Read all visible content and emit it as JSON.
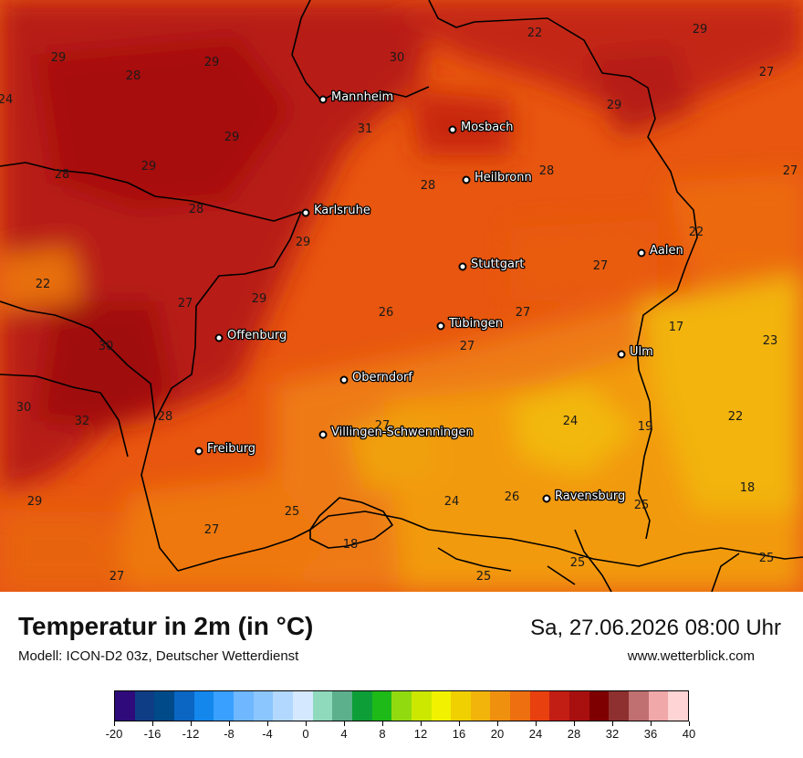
{
  "map": {
    "temperature_labels": [
      {
        "text": "29"
      },
      {
        "text": "28"
      },
      {
        "text": "29"
      },
      {
        "text": "30"
      },
      {
        "text": "22"
      },
      {
        "text": "29"
      },
      {
        "text": "24"
      },
      {
        "text": "27"
      },
      {
        "text": "29"
      },
      {
        "text": "31"
      },
      {
        "text": "29"
      },
      {
        "text": "28"
      },
      {
        "text": "29"
      },
      {
        "text": "28"
      },
      {
        "text": "27"
      },
      {
        "text": "28"
      },
      {
        "text": "28"
      },
      {
        "text": "22"
      },
      {
        "text": "29"
      },
      {
        "text": "22"
      },
      {
        "text": "27"
      },
      {
        "text": "27"
      },
      {
        "text": "29"
      },
      {
        "text": "26"
      },
      {
        "text": "27"
      },
      {
        "text": "17"
      },
      {
        "text": "30"
      },
      {
        "text": "23"
      },
      {
        "text": "27"
      },
      {
        "text": "30"
      },
      {
        "text": "32"
      },
      {
        "text": "28"
      },
      {
        "text": "24"
      },
      {
        "text": "27"
      },
      {
        "text": "19"
      },
      {
        "text": "22"
      },
      {
        "text": "29"
      },
      {
        "text": "25"
      },
      {
        "text": "24"
      },
      {
        "text": "26"
      },
      {
        "text": "25"
      },
      {
        "text": "18"
      },
      {
        "text": "27"
      },
      {
        "text": "18"
      },
      {
        "text": "25"
      },
      {
        "text": "27"
      },
      {
        "text": "25"
      },
      {
        "text": "25"
      }
    ],
    "cities": [
      {
        "name": "Mannheim"
      },
      {
        "name": "Mosbach"
      },
      {
        "name": "Heilbronn"
      },
      {
        "name": "Karlsruhe"
      },
      {
        "name": "Stuttgart"
      },
      {
        "name": "Aalen"
      },
      {
        "name": "Tübingen"
      },
      {
        "name": "Ulm"
      },
      {
        "name": "Offenburg"
      },
      {
        "name": "Oberndorf"
      },
      {
        "name": "Villingen-Schwenningen"
      },
      {
        "name": "Freiburg"
      },
      {
        "name": "Ravensburg"
      }
    ]
  },
  "footer": {
    "title": "Temperatur in 2m (in °C)",
    "model": "Modell: ICON-D2 03z, Deutscher Wetterdienst",
    "datetime": "Sa, 27.06.2026 08:00 Uhr",
    "website": "www.wetterblick.com"
  },
  "colorbar": {
    "colors": [
      "#2e0a7a",
      "#0e3d86",
      "#004a8a",
      "#0a66c2",
      "#1387ec",
      "#3aa0ff",
      "#6fb7ff",
      "#8cc6ff",
      "#b2d8ff",
      "#d4e8ff",
      "#8fd9bc",
      "#5db08c",
      "#0e9e38",
      "#1eba18",
      "#92da10",
      "#cce800",
      "#f2f200",
      "#f0d000",
      "#f2b40a",
      "#f0900f",
      "#ee6f10",
      "#e8400e",
      "#c31e14",
      "#a80f0f",
      "#7f0000",
      "#8e3030",
      "#c07070",
      "#f0a8a8",
      "#ffd4d4"
    ],
    "tick_labels": [
      "-20",
      "-16",
      "-12",
      "-8",
      "-4",
      "0",
      "4",
      "8",
      "12",
      "16",
      "20",
      "24",
      "28",
      "32",
      "36",
      "40"
    ]
  }
}
